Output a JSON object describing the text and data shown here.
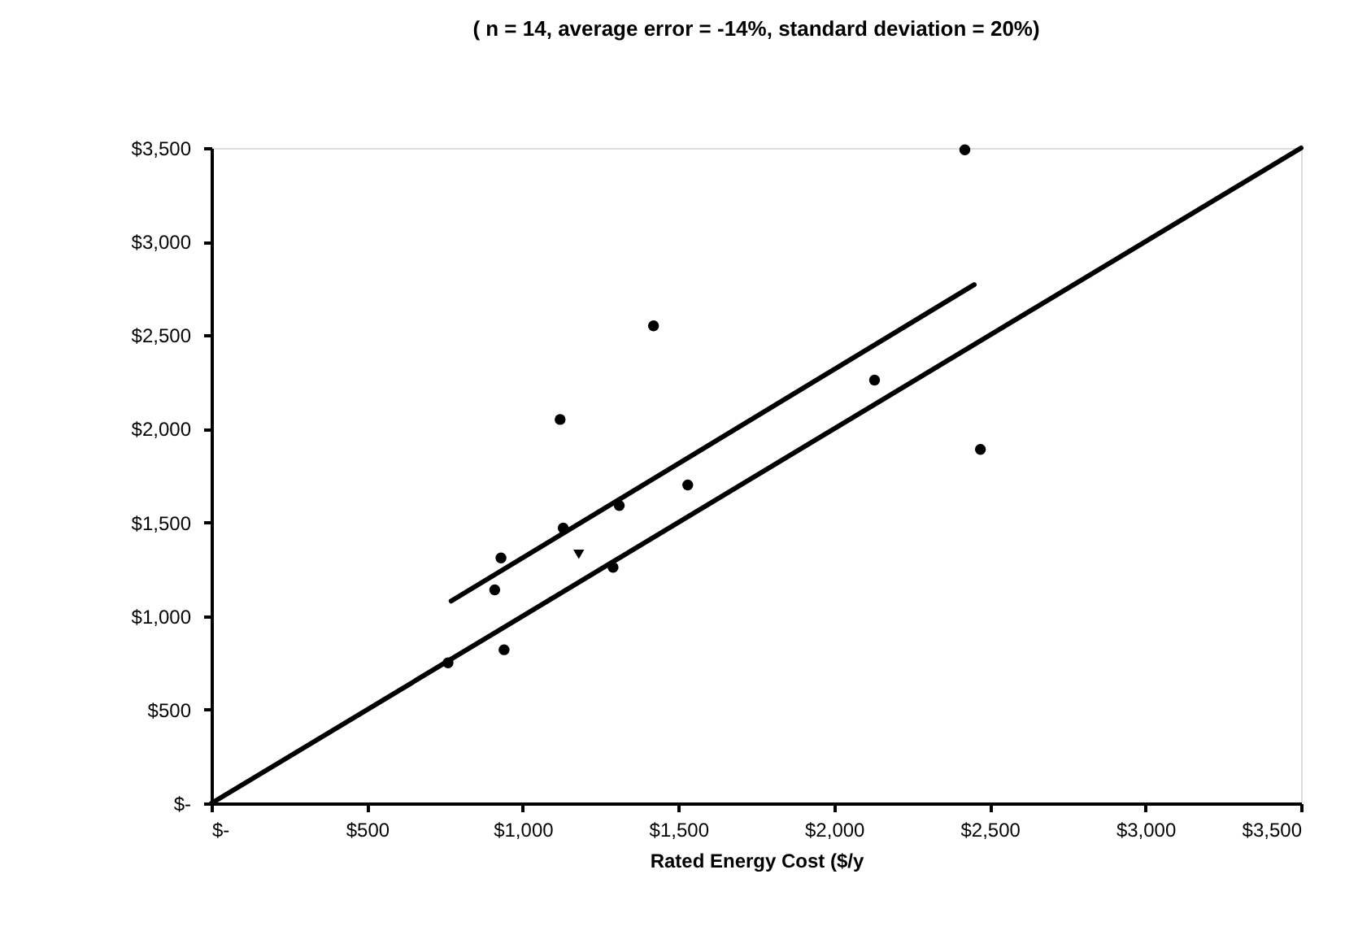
{
  "chart_data": {
    "type": "scatter",
    "title": "( n = 14, average error = -14%, standard deviation = 20%)",
    "xlabel": "Rated Energy Cost ($/y",
    "series": [
      {
        "marker": "circle",
        "color": "#000000",
        "x": [
          2420,
          1420,
          1120,
          2130,
          2470,
          1530,
          1310,
          1130,
          930,
          910,
          1290,
          940,
          760
        ],
        "values": [
          3490,
          2550,
          2050,
          2260,
          1890,
          1700,
          1590,
          1470,
          1310,
          1140,
          1260,
          820,
          750
        ]
      },
      {
        "marker": "triangle",
        "color": "#000000",
        "x": [
          1180
        ],
        "values": [
          1330
        ]
      },
      {
        "type": "line",
        "marker": "none",
        "line_style": "solid",
        "color": "#000000",
        "x": [
          770,
          2450
        ],
        "values": [
          1080,
          2770
        ]
      },
      {
        "type": "line",
        "marker": "none",
        "line_style": "solid",
        "color": "#000000",
        "x": [
          0,
          3500
        ],
        "values": [
          0,
          3500
        ]
      }
    ],
    "xlim": [
      0,
      3500
    ],
    "ylim": [
      0,
      3500
    ],
    "xticks": [
      {
        "value": 0,
        "label": "$-"
      },
      {
        "value": 500,
        "label": "$500"
      },
      {
        "value": 1000,
        "label": "$1,000"
      },
      {
        "value": 1500,
        "label": "$1,500"
      },
      {
        "value": 2000,
        "label": "$2,000"
      },
      {
        "value": 2500,
        "label": "$2,500"
      },
      {
        "value": 3000,
        "label": "$3,000"
      },
      {
        "value": 3500,
        "label": "$3,500"
      }
    ],
    "yticks": [
      {
        "value": 0,
        "label": "$-"
      },
      {
        "value": 500,
        "label": "$500"
      },
      {
        "value": 1000,
        "label": "$1,000"
      },
      {
        "value": 1500,
        "label": "$1,500"
      },
      {
        "value": 2000,
        "label": "$2,000"
      },
      {
        "value": 2500,
        "label": "$2,500"
      },
      {
        "value": 3000,
        "label": "$3,000"
      },
      {
        "value": 3500,
        "label": "$3,500"
      }
    ],
    "grid": false
  }
}
